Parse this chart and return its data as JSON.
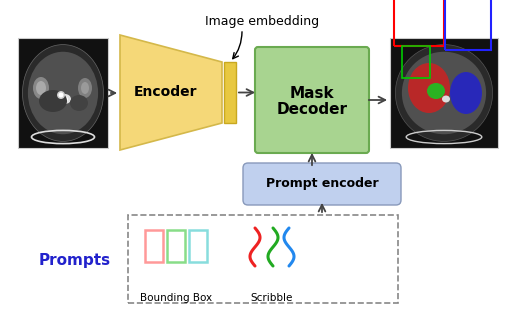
{
  "bg_color": "#ffffff",
  "encoder_color": "#F5D878",
  "encoder_edge_color": "#D4B84A",
  "embedding_color": "#E8C840",
  "embedding_edge_color": "#C8A820",
  "mask_decoder_color": "#A8D490",
  "mask_decoder_edge_color": "#6AAA50",
  "prompt_encoder_color": "#C0D0EE",
  "prompt_encoder_edge_color": "#8899BB",
  "arrow_color": "#444444",
  "prompts_label_color": "#2222CC",
  "bbox_colors": [
    "#FF9999",
    "#88DD88",
    "#88DDDD"
  ],
  "scribble_red": "#EE2222",
  "scribble_green": "#22AA22",
  "scribble_blue": "#2288EE",
  "image_embedding_text": "Image embedding",
  "encoder_text": "Encoder",
  "mask_decoder_line1": "Mask",
  "mask_decoder_line2": "Decoder",
  "prompt_encoder_text": "Prompt encoder",
  "prompts_text": "Prompts",
  "bounding_box_text": "Bounding Box",
  "scribble_text": "Scribble",
  "fig_w": 5.1,
  "fig_h": 3.16,
  "dpi": 100
}
